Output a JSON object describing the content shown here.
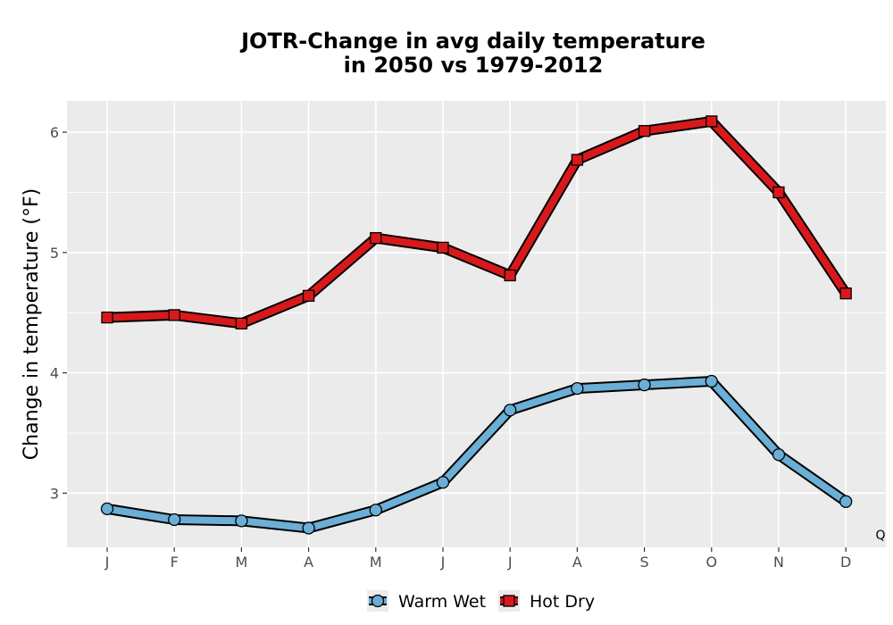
{
  "chart_data": {
    "type": "line",
    "title": [
      "JOTR-Change in avg daily temperature",
      "in 2050 vs 1979-2012"
    ],
    "ylabel": "Change in temperature (°F)",
    "xlabel": "",
    "categories": [
      "J",
      "F",
      "M",
      "A",
      "M",
      "J",
      "J",
      "A",
      "S",
      "O",
      "N",
      "D"
    ],
    "yticks": [
      3,
      4,
      5,
      6
    ],
    "ylim": [
      2.55,
      6.26
    ],
    "grid": true,
    "legend_position": "bottom",
    "caption": "Q",
    "series": [
      {
        "name": "Warm Wet",
        "marker": "circle",
        "color": "#6baed6",
        "values": [
          2.87,
          2.78,
          2.77,
          2.71,
          2.86,
          3.09,
          3.69,
          3.87,
          3.9,
          3.93,
          3.32,
          2.93
        ]
      },
      {
        "name": "Hot Dry",
        "marker": "square",
        "color": "#d7191c",
        "values": [
          4.46,
          4.48,
          4.41,
          4.64,
          5.12,
          5.04,
          4.81,
          5.77,
          6.01,
          6.09,
          5.5,
          4.66
        ]
      }
    ]
  }
}
